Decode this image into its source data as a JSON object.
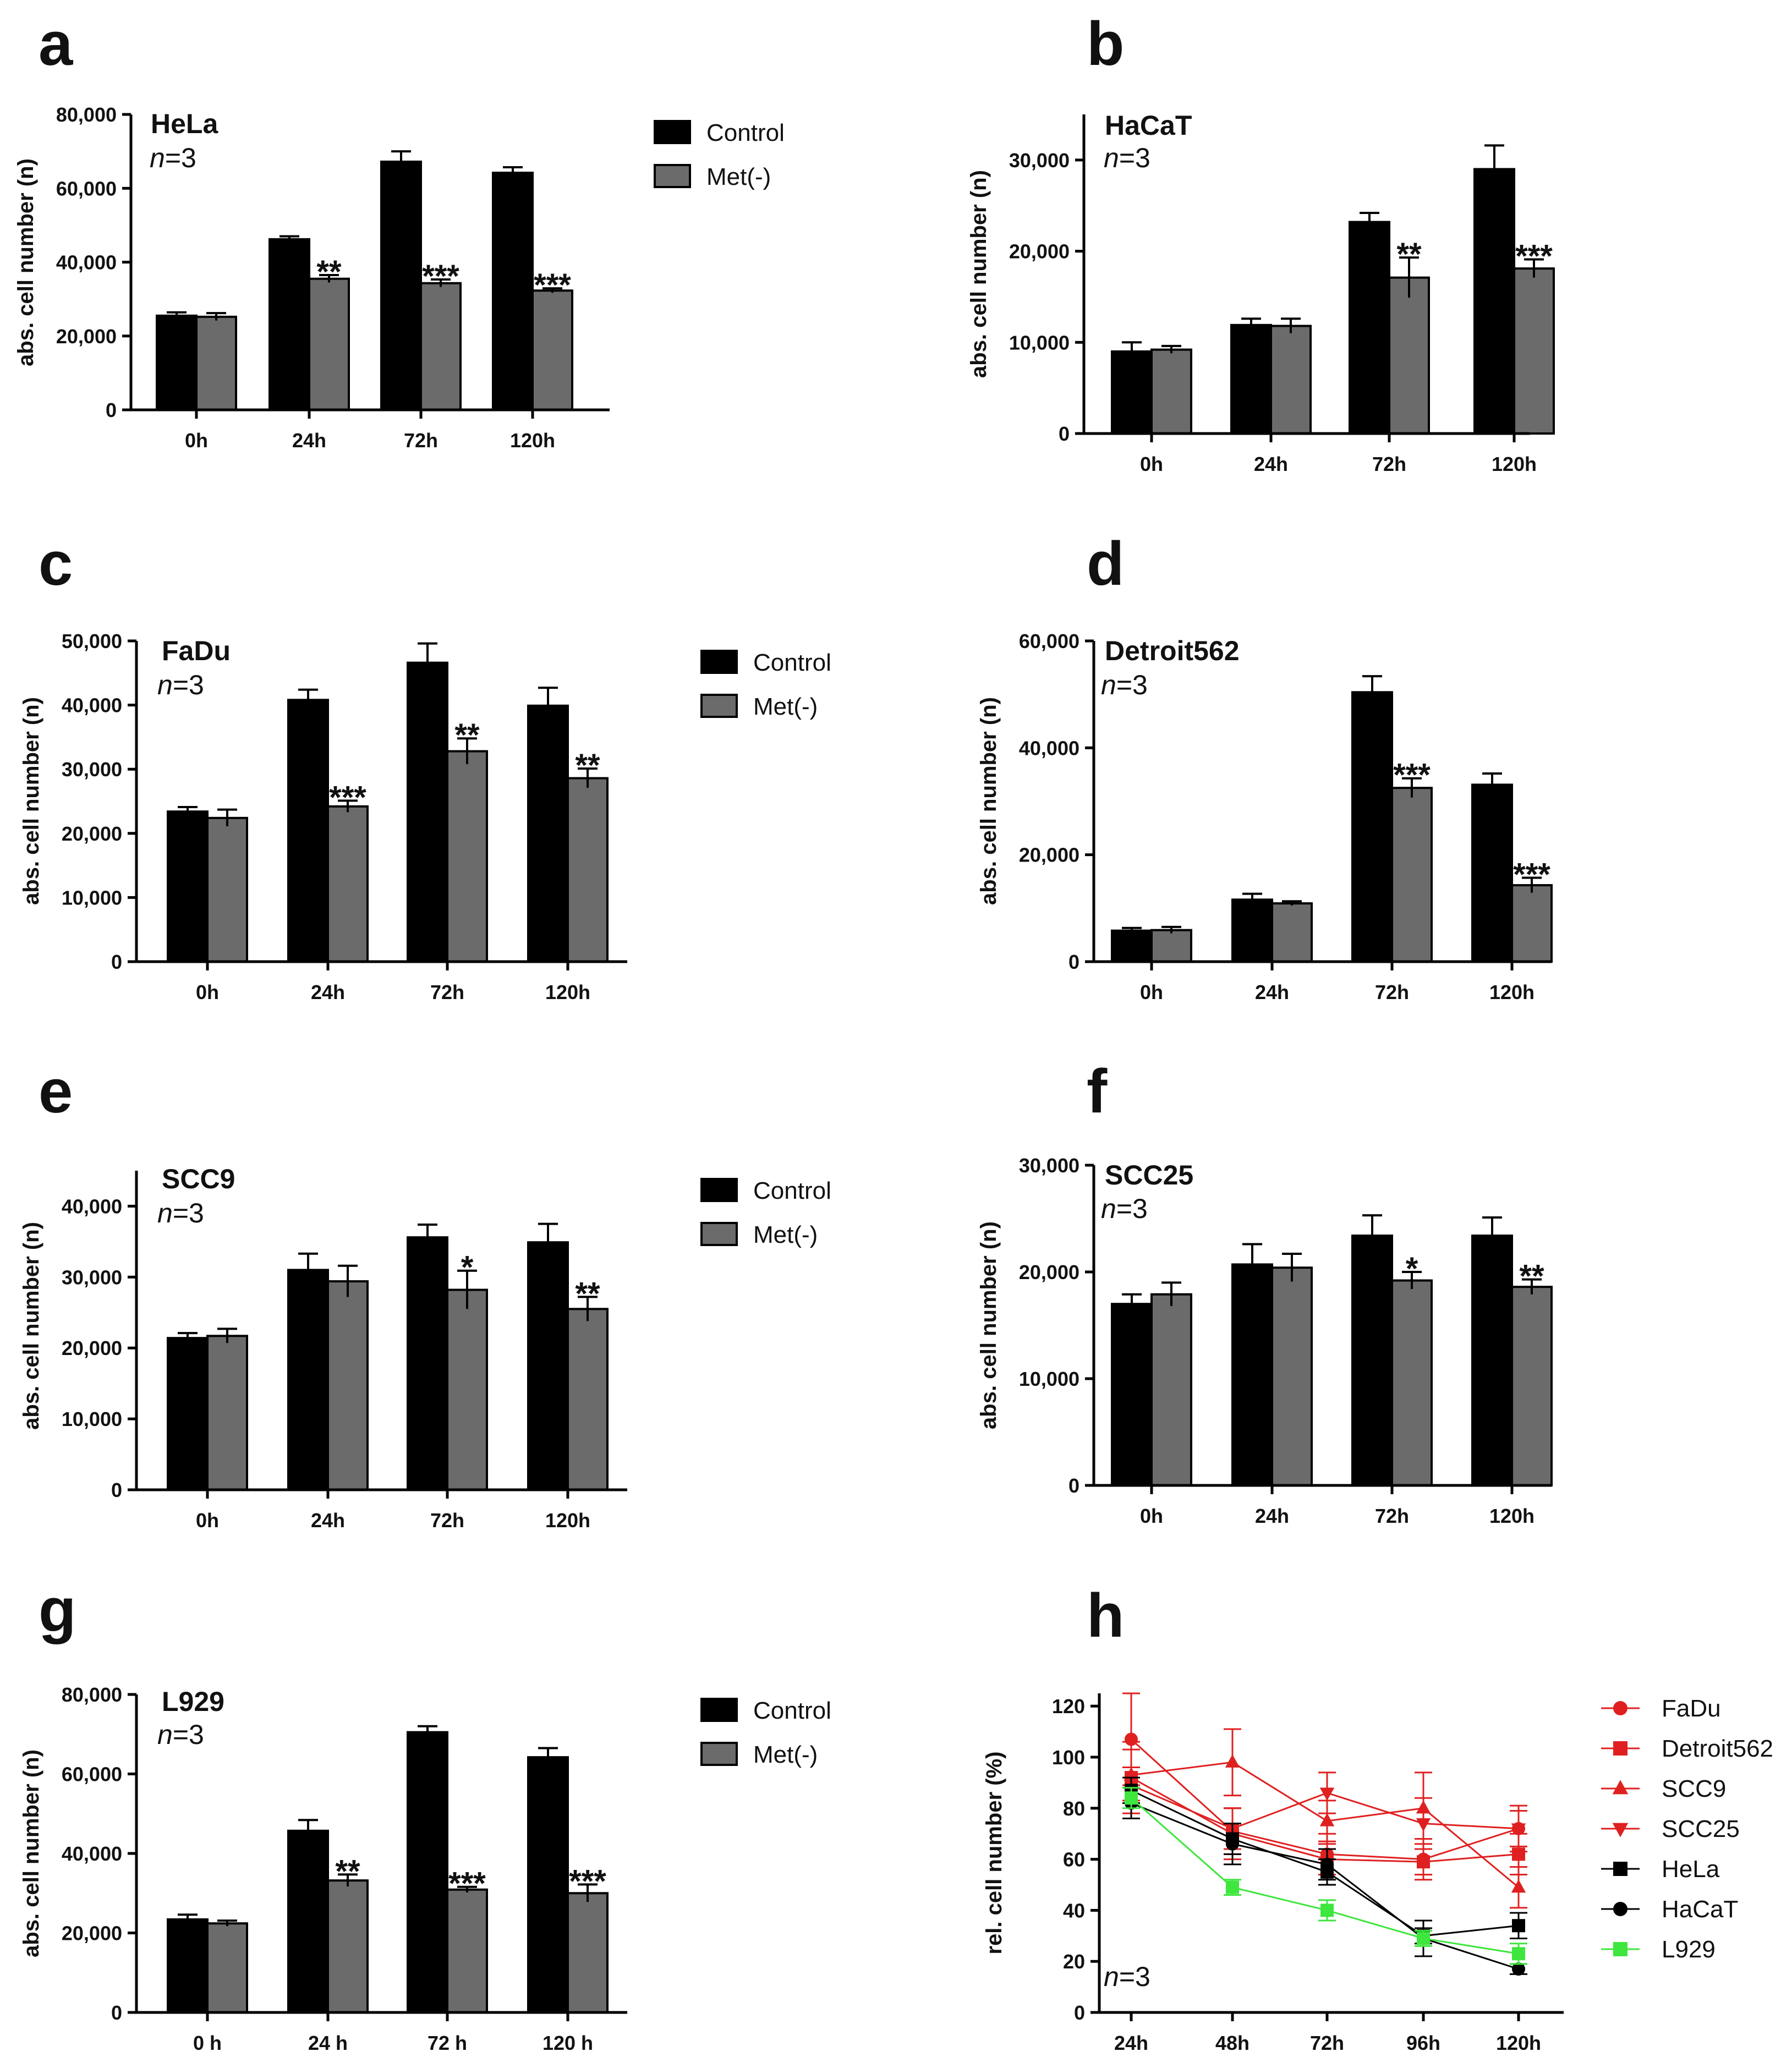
{
  "colors": {
    "control": "#000000",
    "met": "#6b6b6b",
    "red": "#e02020",
    "black": "#000000",
    "green": "#3ee63e"
  },
  "chart_data": [
    {
      "panel": "a",
      "type": "bar",
      "title": "HeLa",
      "n_label": "n=3",
      "ylabel": "abs. cell number (n)",
      "ylim": [
        0,
        80000
      ],
      "yticks": [
        0,
        20000,
        40000,
        60000,
        80000
      ],
      "ytick_labels": [
        "0",
        "20,000",
        "40,000",
        "60,000",
        "80,000"
      ],
      "categories": [
        "0h",
        "24h",
        "72h",
        "120h"
      ],
      "legend": [
        "Control",
        "Met(-)"
      ],
      "series": [
        {
          "name": "Control",
          "values": [
            25500,
            46200,
            67200,
            64200
          ],
          "errors": [
            900,
            800,
            2800,
            1500
          ]
        },
        {
          "name": "Met(-)",
          "values": [
            25200,
            35500,
            34300,
            32300
          ],
          "errors": [
            1000,
            1000,
            1000,
            600
          ]
        }
      ],
      "significance": [
        "",
        "**",
        "***",
        "***"
      ]
    },
    {
      "panel": "b",
      "type": "bar",
      "title": "HaCaT",
      "n_label": "n=3",
      "ylabel": "abs. cell number (n)",
      "ylim": [
        0,
        35000
      ],
      "yticks": [
        0,
        10000,
        20000,
        30000
      ],
      "ytick_labels": [
        "0",
        "10,000",
        "20,000",
        "30,000"
      ],
      "categories": [
        "0h",
        "24h",
        "72h",
        "120h"
      ],
      "legend": [],
      "series": [
        {
          "name": "Control",
          "values": [
            9000,
            11900,
            23200,
            29000
          ],
          "errors": [
            1000,
            700,
            1000,
            2600
          ]
        },
        {
          "name": "Met(-)",
          "values": [
            9200,
            11800,
            17100,
            18100
          ],
          "errors": [
            400,
            800,
            2200,
            1000
          ]
        }
      ],
      "significance": [
        "",
        "",
        "**",
        "***"
      ]
    },
    {
      "panel": "c",
      "type": "bar",
      "title": "FaDu",
      "n_label": "n=3",
      "ylabel": "abs. cell number (n)",
      "ylim": [
        0,
        50000
      ],
      "yticks": [
        0,
        10000,
        20000,
        30000,
        40000,
        50000
      ],
      "ytick_labels": [
        "0",
        "10,000",
        "20,000",
        "30,000",
        "40,000",
        "50,000"
      ],
      "categories": [
        "0h",
        "24h",
        "72h",
        "120h"
      ],
      "legend": [
        "Control",
        "Met(-)"
      ],
      "series": [
        {
          "name": "Control",
          "values": [
            23400,
            40800,
            46600,
            39900
          ],
          "errors": [
            700,
            1600,
            3000,
            2800
          ]
        },
        {
          "name": "Met(-)",
          "values": [
            22400,
            24200,
            32800,
            28600
          ],
          "errors": [
            1300,
            900,
            2000,
            1500
          ]
        }
      ],
      "significance": [
        "",
        "***",
        "**",
        "**"
      ]
    },
    {
      "panel": "d",
      "type": "bar",
      "title": "Detroit562",
      "n_label": "n=3",
      "ylabel": "abs. cell number (n)",
      "ylim": [
        0,
        60000
      ],
      "yticks": [
        0,
        20000,
        40000,
        60000
      ],
      "ytick_labels": [
        "0",
        "20,000",
        "40,000",
        "60,000"
      ],
      "categories": [
        "0h",
        "24h",
        "72h",
        "120h"
      ],
      "legend": [],
      "series": [
        {
          "name": "Control",
          "values": [
            5800,
            11600,
            50400,
            33100
          ],
          "errors": [
            500,
            1100,
            3000,
            2100
          ]
        },
        {
          "name": "Met(-)",
          "values": [
            5900,
            10900,
            32500,
            14300
          ],
          "errors": [
            600,
            400,
            1800,
            1400
          ]
        }
      ],
      "significance": [
        "",
        "",
        "***",
        "***"
      ]
    },
    {
      "panel": "e",
      "type": "bar",
      "title": "SCC9",
      "n_label": "n=3",
      "ylabel": "abs. cell number (n)",
      "ylim": [
        0,
        45000
      ],
      "yticks": [
        0,
        10000,
        20000,
        30000,
        40000
      ],
      "ytick_labels": [
        "0",
        "10,000",
        "20,000",
        "30,000",
        "40,000"
      ],
      "categories": [
        "0h",
        "24h",
        "72h",
        "120h"
      ],
      "legend": [
        "Control",
        "Met(-)"
      ],
      "series": [
        {
          "name": "Control",
          "values": [
            21400,
            31000,
            35600,
            34900
          ],
          "errors": [
            700,
            2300,
            1800,
            2600
          ]
        },
        {
          "name": "Met(-)",
          "values": [
            21700,
            29400,
            28200,
            25500
          ],
          "errors": [
            1000,
            2200,
            2700,
            1700
          ]
        }
      ],
      "significance": [
        "",
        "",
        "*",
        "**"
      ]
    },
    {
      "panel": "f",
      "type": "bar",
      "title": "SCC25",
      "n_label": "n=3",
      "ylabel": "abs. cell number (n)",
      "ylim": [
        0,
        30000
      ],
      "yticks": [
        0,
        10000,
        20000,
        30000
      ],
      "ytick_labels": [
        "0",
        "10,000",
        "20,000",
        "30,000"
      ],
      "categories": [
        "0h",
        "24h",
        "72h",
        "120h"
      ],
      "legend": [],
      "series": [
        {
          "name": "Control",
          "values": [
            17000,
            20700,
            23400,
            23400
          ],
          "errors": [
            900,
            1900,
            1900,
            1700
          ]
        },
        {
          "name": "Met(-)",
          "values": [
            17900,
            20400,
            19200,
            18600
          ],
          "errors": [
            1100,
            1300,
            800,
            700
          ]
        }
      ],
      "significance": [
        "",
        "",
        "*",
        "**"
      ]
    },
    {
      "panel": "g",
      "type": "bar",
      "title": "L929",
      "n_label": "n=3",
      "ylabel": "abs. cell number (n)",
      "ylim": [
        0,
        80000
      ],
      "yticks": [
        0,
        20000,
        40000,
        60000,
        80000
      ],
      "ytick_labels": [
        "0",
        "20,000",
        "40,000",
        "60,000",
        "80,000"
      ],
      "categories": [
        "0 h",
        "24 h",
        "72 h",
        "120 h"
      ],
      "legend": [
        "Control",
        "Met(-)"
      ],
      "series": [
        {
          "name": "Control",
          "values": [
            23400,
            45700,
            70500,
            64200
          ],
          "errors": [
            1200,
            2700,
            1500,
            2300
          ]
        },
        {
          "name": "Met(-)",
          "values": [
            22400,
            33200,
            30900,
            30000
          ],
          "errors": [
            700,
            1500,
            700,
            2200
          ]
        }
      ],
      "significance": [
        "",
        "**",
        "***",
        "***"
      ]
    },
    {
      "panel": "h",
      "type": "line",
      "title": "",
      "n_label": "n=3",
      "ylabel": "rel. cell number (%)",
      "ylim": [
        0,
        125
      ],
      "yticks": [
        0,
        20,
        40,
        60,
        80,
        100,
        120
      ],
      "ytick_labels": [
        "0",
        "20",
        "40",
        "60",
        "80",
        "100",
        "120"
      ],
      "x": [
        "24h",
        "48h",
        "72h",
        "96h",
        "120h"
      ],
      "legend_position": "right",
      "series": [
        {
          "name": "FaDu",
          "color": "#e02020",
          "marker": "circle",
          "values": [
            107,
            71,
            62,
            60,
            72
          ],
          "errors": [
            18,
            9,
            8,
            8,
            7
          ]
        },
        {
          "name": "Detroit562",
          "color": "#e02020",
          "marker": "square",
          "values": [
            92,
            70,
            60,
            59,
            62
          ],
          "errors": [
            14,
            10,
            6,
            5,
            8
          ]
        },
        {
          "name": "SCC9",
          "color": "#e02020",
          "marker": "triangle-up",
          "values": [
            93,
            98,
            75,
            80,
            49
          ],
          "errors": [
            10,
            13,
            8,
            14,
            8
          ]
        },
        {
          "name": "SCC25",
          "color": "#e02020",
          "marker": "triangle-down",
          "values": [
            89,
            72,
            86,
            74,
            72
          ],
          "errors": [
            7,
            8,
            8,
            10,
            9
          ]
        },
        {
          "name": "HeLa",
          "color": "#000000",
          "marker": "square",
          "values": [
            87,
            68,
            55,
            30,
            34
          ],
          "errors": [
            5,
            6,
            5,
            3,
            5
          ]
        },
        {
          "name": "HaCaT",
          "color": "#000000",
          "marker": "circle",
          "values": [
            82,
            66,
            58,
            29,
            17
          ],
          "errors": [
            6,
            8,
            6,
            7,
            2
          ]
        },
        {
          "name": "L929",
          "color": "#3ee63e",
          "marker": "square",
          "values": [
            84,
            49,
            40,
            29,
            23
          ],
          "errors": [
            4,
            3,
            4,
            3,
            4
          ]
        }
      ]
    }
  ]
}
